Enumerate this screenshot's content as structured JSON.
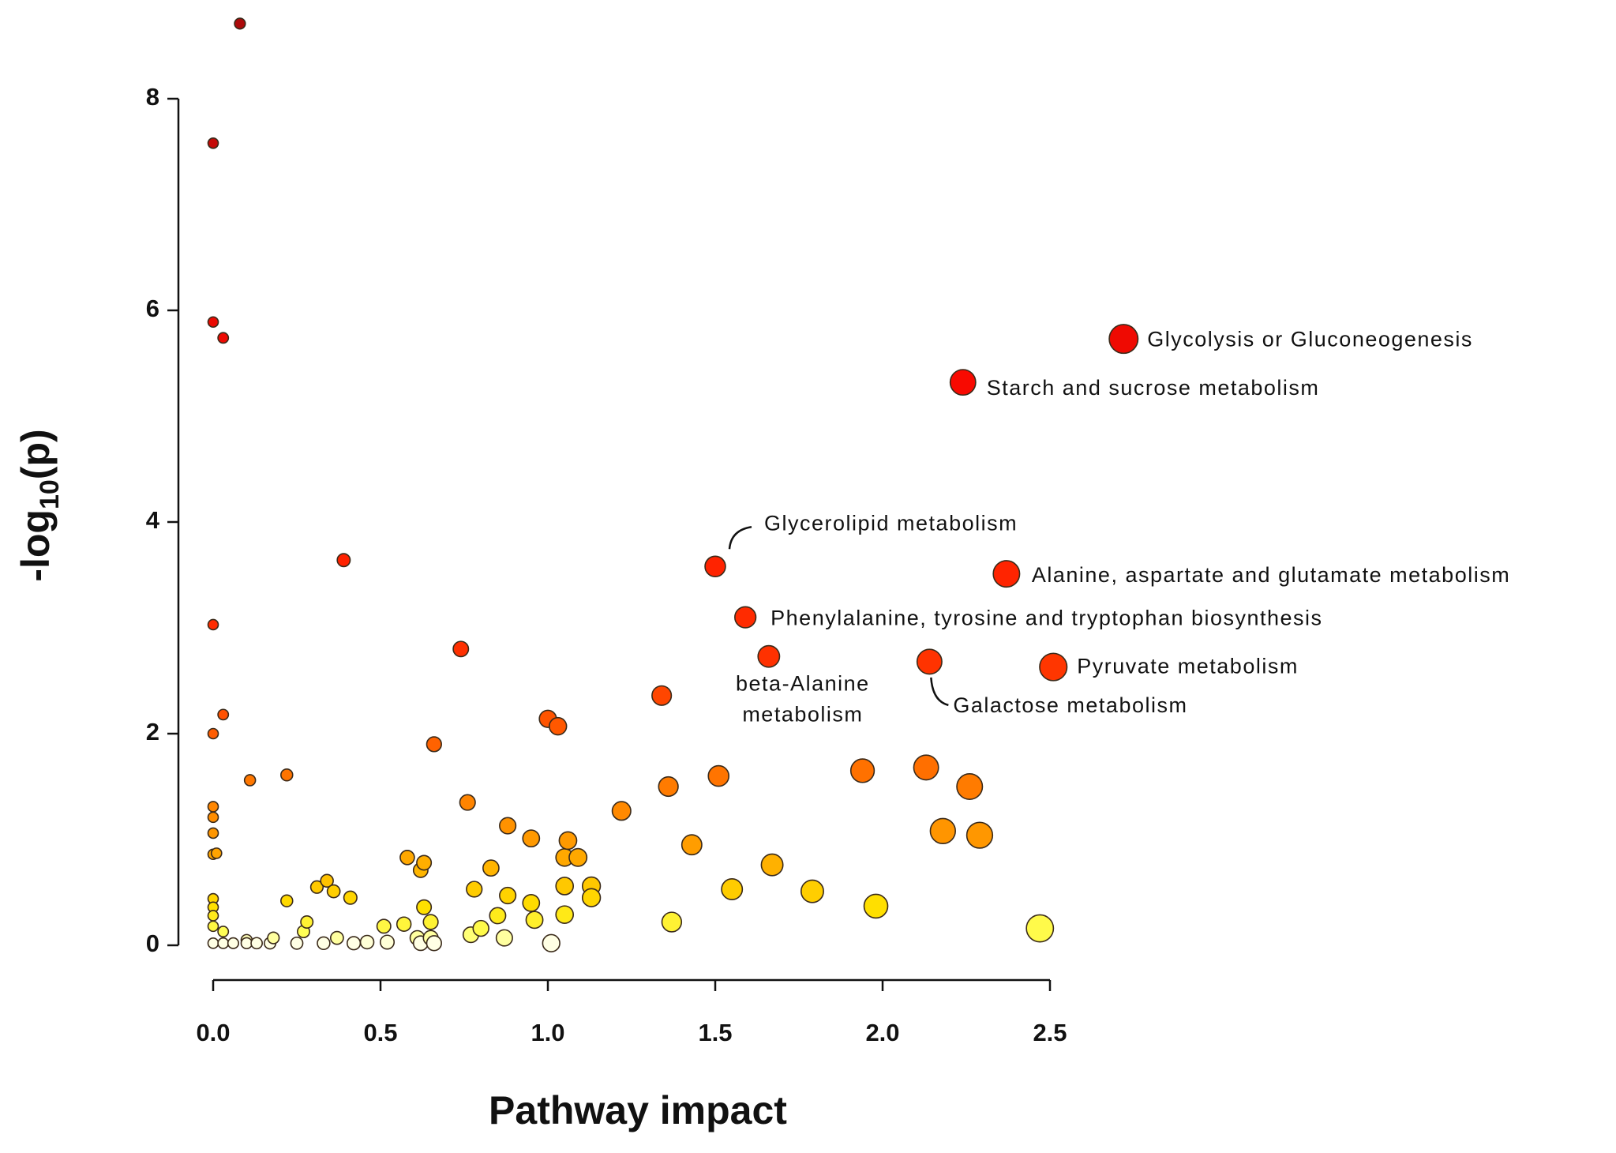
{
  "chart_data": {
    "type": "scatter",
    "x_label": "Pathway impact",
    "y_label": [
      "-log",
      "10",
      "(p)"
    ],
    "xlim": [
      0,
      2.5
    ],
    "ylim": [
      0,
      8
    ],
    "xticks": [
      {
        "value": 0,
        "label": "0.0"
      },
      0.5,
      {
        "value": 1,
        "label": "1.0"
      },
      1.5,
      {
        "value": 2,
        "label": "2.0"
      },
      2.5
    ],
    "yticks": [
      0,
      2,
      4,
      6,
      8
    ],
    "x": [
      0.08,
      0,
      0,
      0.03,
      0.39,
      0,
      0.74,
      1.34,
      0.03,
      1.0,
      1.03,
      0,
      0.66,
      0.11,
      0.22,
      1.51,
      1.36,
      1.94,
      2.13,
      2.26,
      0,
      0.76,
      1.22,
      0,
      0.88,
      2.18,
      2.29,
      0.95,
      1.06,
      0,
      0,
      1.43,
      0.58,
      0.63,
      0.62,
      1.05,
      1.09,
      0.01,
      1.67,
      0.83,
      0.34,
      0.31,
      0.36,
      1.13,
      1.05,
      0.78,
      1.55,
      1.79,
      0.41,
      1.13,
      0.88,
      0.22,
      0,
      1.98,
      0.95,
      0.63,
      0,
      0,
      0.85,
      1.05,
      0.96,
      0.65,
      0.28,
      1.37,
      2.47,
      0,
      0.51,
      0.57,
      0.8,
      0.27,
      0.03,
      0.77,
      0.87,
      0.61,
      0.65,
      0.37,
      0.18,
      0.1,
      0.52,
      0.46,
      0.42,
      1.01,
      0.66,
      0.62,
      0.33,
      0.25,
      0.17,
      0.13,
      0.1,
      0.06,
      0.03,
      0
    ],
    "y": [
      8.71,
      7.58,
      5.89,
      5.74,
      3.64,
      3.03,
      2.8,
      2.36,
      2.18,
      2.14,
      2.07,
      2.0,
      1.9,
      1.56,
      1.61,
      1.6,
      1.5,
      1.65,
      1.68,
      1.5,
      1.31,
      1.35,
      1.27,
      1.21,
      1.13,
      1.08,
      1.04,
      1.01,
      0.99,
      1.06,
      0.86,
      0.95,
      0.83,
      0.78,
      0.71,
      0.83,
      0.83,
      0.87,
      0.76,
      0.73,
      0.61,
      0.55,
      0.51,
      0.56,
      0.56,
      0.53,
      0.53,
      0.51,
      0.45,
      0.45,
      0.47,
      0.42,
      0.44,
      0.37,
      0.4,
      0.36,
      0.36,
      0.28,
      0.28,
      0.29,
      0.24,
      0.22,
      0.22,
      0.22,
      0.16,
      0.18,
      0.18,
      0.2,
      0.16,
      0.13,
      0.13,
      0.1,
      0.07,
      0.07,
      0.07,
      0.07,
      0.07,
      0.05,
      0.03,
      0.03,
      0.02,
      0.02,
      0.02,
      0.02,
      0.02,
      0.02,
      0.02,
      0.02,
      0.02,
      0.02,
      0.02,
      0.02
    ],
    "annotations": [
      {
        "text": [
          "Glycolysis or Gluconeogenesis"
        ],
        "x": 2.72,
        "y": 5.73
      },
      {
        "text": [
          "Starch and sucrose metabolism"
        ],
        "x": 2.24,
        "y": 5.32
      },
      {
        "text": [
          "Glycerolipid metabolism"
        ],
        "x": 1.5,
        "y": 3.58
      },
      {
        "text": [
          "Alanine, aspartate and glutamate metabolism"
        ],
        "x": 2.37,
        "y": 3.51
      },
      {
        "text": [
          "Phenylalanine, tyrosine and tryptophan biosynthesis"
        ],
        "x": 1.59,
        "y": 3.1
      },
      {
        "text": [
          "beta-Alanine",
          "metabolism"
        ],
        "x": 1.66,
        "y": 2.73
      },
      {
        "text": [
          "Galactose metabolism"
        ],
        "x": 2.14,
        "y": 2.68
      },
      {
        "text": [
          "Pyruvate metabolism"
        ],
        "x": 2.51,
        "y": 2.63
      }
    ]
  }
}
